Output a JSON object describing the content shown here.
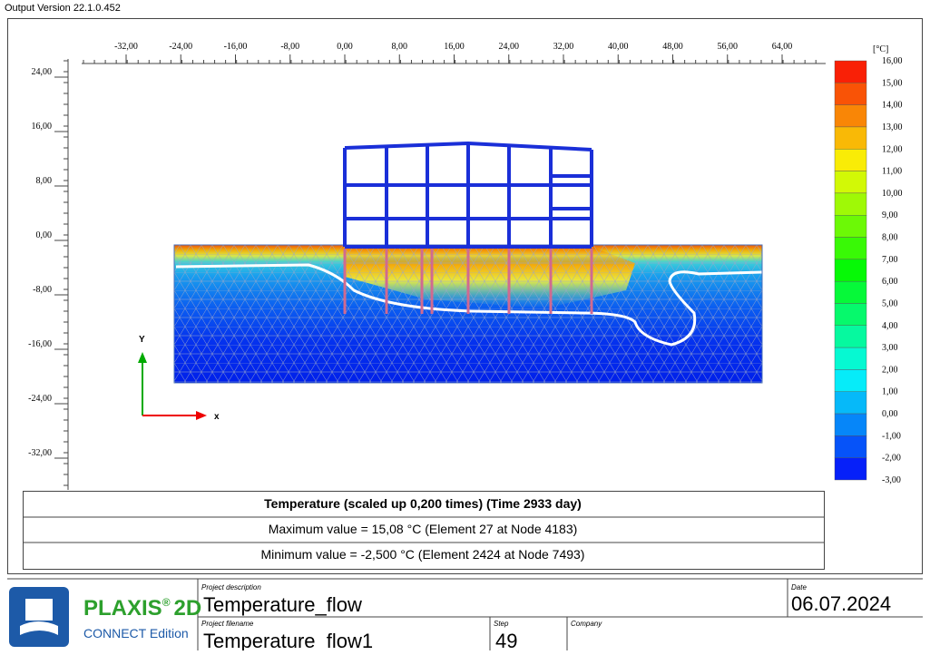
{
  "header": {
    "version": "Output Version 22.1.0.452"
  },
  "plot": {
    "x_ticks": [
      {
        "value": -32,
        "label": "-32,00"
      },
      {
        "value": -24,
        "label": "-24,00"
      },
      {
        "value": -16,
        "label": "-16,00"
      },
      {
        "value": -8,
        "label": "-8,00"
      },
      {
        "value": 0,
        "label": "0,00"
      },
      {
        "value": 8,
        "label": "8,00"
      },
      {
        "value": 16,
        "label": "16,00"
      },
      {
        "value": 24,
        "label": "24,00"
      },
      {
        "value": 32,
        "label": "32,00"
      },
      {
        "value": 40,
        "label": "40,00"
      },
      {
        "value": 48,
        "label": "48,00"
      },
      {
        "value": 56,
        "label": "56,00"
      },
      {
        "value": 64,
        "label": "64,00"
      }
    ],
    "y_ticks": [
      {
        "value": 24,
        "label": "24,00"
      },
      {
        "value": 16,
        "label": "16,00"
      },
      {
        "value": 8,
        "label": "8,00"
      },
      {
        "value": 0,
        "label": "0,00"
      },
      {
        "value": -8,
        "label": "-8,00"
      },
      {
        "value": -16,
        "label": "-16,00"
      },
      {
        "value": -24,
        "label": "-24,00"
      },
      {
        "value": -32,
        "label": "-32,00"
      }
    ],
    "axis_y": "Y",
    "axis_x": "x",
    "legend": {
      "unit": "[°C]",
      "ticks": [
        {
          "value": 16,
          "label": "16,00"
        },
        {
          "value": 15,
          "label": "15,00"
        },
        {
          "value": 14,
          "label": "14,00"
        },
        {
          "value": 13,
          "label": "13,00"
        },
        {
          "value": 12,
          "label": "12,00"
        },
        {
          "value": 11,
          "label": "11,00"
        },
        {
          "value": 10,
          "label": "10,00"
        },
        {
          "value": 9,
          "label": "9,00"
        },
        {
          "value": 8,
          "label": "8,00"
        },
        {
          "value": 7,
          "label": "7,00"
        },
        {
          "value": 6,
          "label": "6,00"
        },
        {
          "value": 5,
          "label": "5,00"
        },
        {
          "value": 4,
          "label": "4,00"
        },
        {
          "value": 3,
          "label": "3,00"
        },
        {
          "value": 2,
          "label": "2,00"
        },
        {
          "value": 1,
          "label": "1,00"
        },
        {
          "value": 0,
          "label": "0,00"
        },
        {
          "value": -1,
          "label": "-1,00"
        },
        {
          "value": -2,
          "label": "-2,00"
        },
        {
          "value": -3,
          "label": "-3,00"
        }
      ]
    }
  },
  "info": {
    "title": "Temperature (scaled up 0,200 times) (Time 2933 day)",
    "max": "Maximum value = 15,08 °C (Element 27 at Node 4183)",
    "min": "Minimum value = -2,500 °C (Element 2424 at Node 7493)"
  },
  "footer": {
    "brand": "PLAXIS",
    "registered": "®",
    "product": "2D",
    "edition": "CONNECT Edition",
    "description_label": "Project description",
    "description": "Temperature_flow",
    "date_label": "Date",
    "date": "06.07.2024",
    "filename_label": "Project filename",
    "filename": "Temperature_flow1",
    "step_label": "Step",
    "step": "49",
    "company_label": "Company"
  }
}
